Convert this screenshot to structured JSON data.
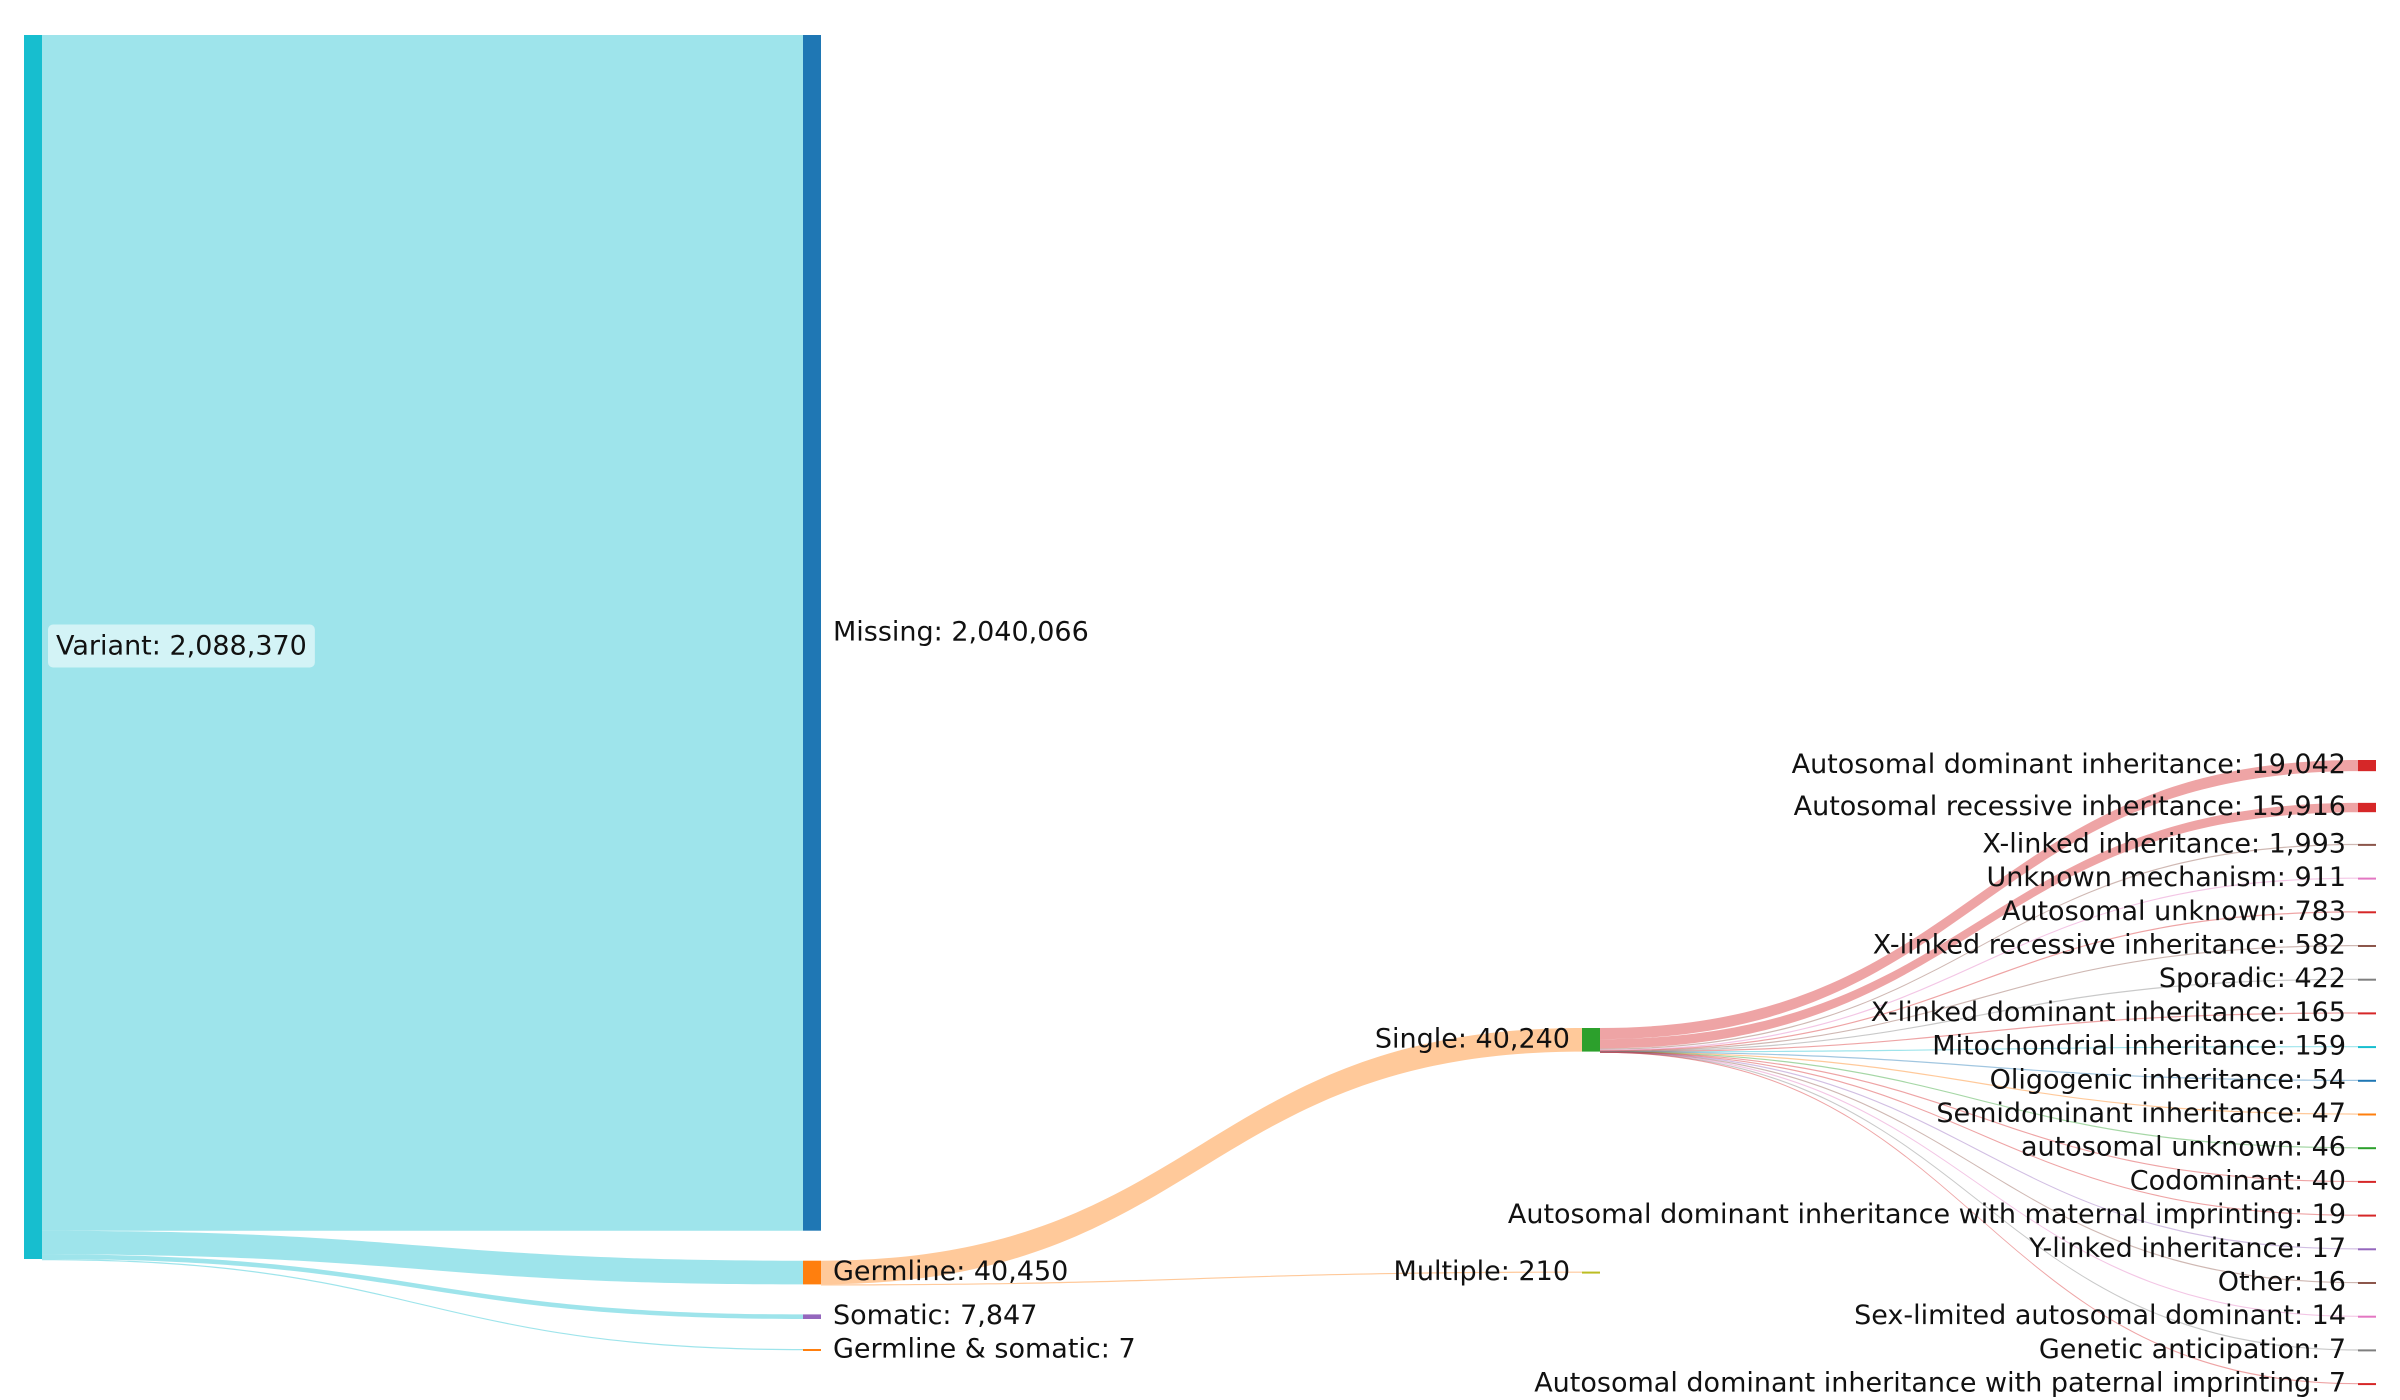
{
  "chart_data": {
    "type": "sankey",
    "root": {
      "label": "Variant: 2,088,370",
      "value": 2088370,
      "color": "#17becf",
      "children": [
        {
          "label": "Missing: 2,040,066",
          "value": 2040066,
          "color": "#1f77b4",
          "link_color": "#17becf"
        },
        {
          "label": "Germline: 40,450",
          "value": 40450,
          "color": "#ff7f0e",
          "link_color": "#17becf",
          "children": [
            {
              "label": "Single: 40,240",
              "value": 40240,
              "color": "#2ca02c",
              "link_color": "#ff7f0e",
              "children": [
                {
                  "label": "Autosomal dominant inheritance: 19,042",
                  "value": 19042,
                  "color": "#d62728",
                  "link_color": "#d62728"
                },
                {
                  "label": "Autosomal recessive inheritance: 15,916",
                  "value": 15916,
                  "color": "#d62728",
                  "link_color": "#d62728"
                },
                {
                  "label": "X-linked inheritance: 1,993",
                  "value": 1993,
                  "color": "#8c564b",
                  "link_color": "#8c564b"
                },
                {
                  "label": "Unknown mechanism: 911",
                  "value": 911,
                  "color": "#e377c2",
                  "link_color": "#e377c2"
                },
                {
                  "label": "Autosomal unknown: 783",
                  "value": 783,
                  "color": "#d62728",
                  "link_color": "#d62728"
                },
                {
                  "label": "X-linked recessive inheritance: 582",
                  "value": 582,
                  "color": "#8c564b",
                  "link_color": "#8c564b"
                },
                {
                  "label": "Sporadic: 422",
                  "value": 422,
                  "color": "#7f7f7f",
                  "link_color": "#7f7f7f"
                },
                {
                  "label": "X-linked dominant inheritance: 165",
                  "value": 165,
                  "color": "#d62728",
                  "link_color": "#d62728"
                },
                {
                  "label": "Mitochondrial inheritance: 159",
                  "value": 159,
                  "color": "#17becf",
                  "link_color": "#17becf"
                },
                {
                  "label": "Oligogenic inheritance: 54",
                  "value": 54,
                  "color": "#1f77b4",
                  "link_color": "#1f77b4"
                },
                {
                  "label": "Semidominant inheritance: 47",
                  "value": 47,
                  "color": "#ff7f0e",
                  "link_color": "#ff7f0e"
                },
                {
                  "label": "autosomal unknown: 46",
                  "value": 46,
                  "color": "#2ca02c",
                  "link_color": "#2ca02c"
                },
                {
                  "label": "Codominant: 40",
                  "value": 40,
                  "color": "#d62728",
                  "link_color": "#d62728"
                },
                {
                  "label": "Autosomal dominant inheritance with maternal imprinting: 19",
                  "value": 19,
                  "color": "#d62728",
                  "link_color": "#d62728"
                },
                {
                  "label": "Y-linked inheritance: 17",
                  "value": 17,
                  "color": "#9467bd",
                  "link_color": "#9467bd"
                },
                {
                  "label": "Other: 16",
                  "value": 16,
                  "color": "#8c564b",
                  "link_color": "#8c564b"
                },
                {
                  "label": "Sex-limited autosomal dominant: 14",
                  "value": 14,
                  "color": "#e377c2",
                  "link_color": "#e377c2"
                },
                {
                  "label": "Genetic anticipation: 7",
                  "value": 7,
                  "color": "#7f7f7f",
                  "link_color": "#7f7f7f"
                },
                {
                  "label": "Autosomal dominant inheritance with paternal imprinting: 7",
                  "value": 7,
                  "color": "#d62728",
                  "link_color": "#d62728"
                }
              ]
            },
            {
              "label": "Multiple: 210",
              "value": 210,
              "color": "#bcbd22",
              "link_color": "#ff7f0e"
            }
          ]
        },
        {
          "label": "Somatic: 7,847",
          "value": 7847,
          "color": "#9467bd",
          "link_color": "#17becf"
        },
        {
          "label": "Germline & somatic: 7",
          "value": 7,
          "color": "#ff7f0e",
          "link_color": "#17becf"
        }
      ]
    }
  }
}
